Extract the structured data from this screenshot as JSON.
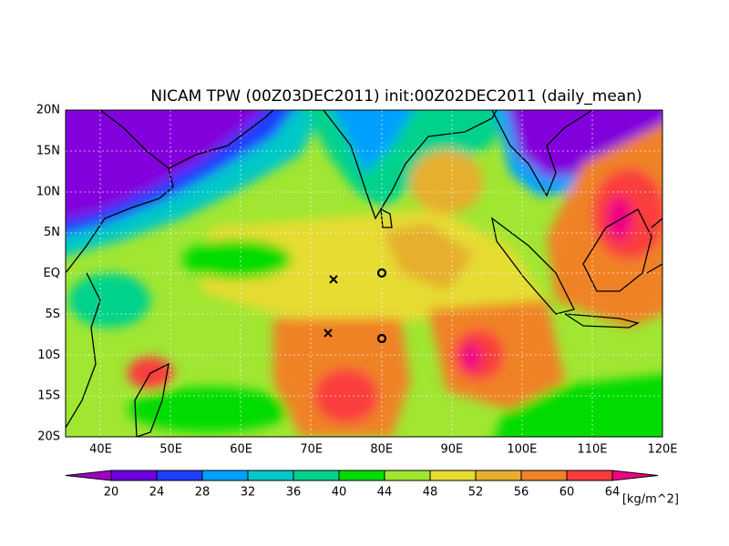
{
  "title": "NICAM TPW (00Z03DEC2011) init:00Z02DEC2011 (daily_mean)",
  "map": {
    "lat_labels": [
      "20N",
      "15N",
      "10N",
      "5N",
      "EQ",
      "5S",
      "10S",
      "15S",
      "20S"
    ],
    "lon_labels": [
      "40E",
      "50E",
      "60E",
      "70E",
      "80E",
      "90E",
      "100E",
      "110E",
      "120E"
    ]
  },
  "colorbar": {
    "colors": [
      "#a000c8",
      "#6e00dc",
      "#1e3cff",
      "#00a0ff",
      "#00c8c8",
      "#00d28c",
      "#00dc00",
      "#a0e632",
      "#e6dc32",
      "#e6af2d",
      "#f08228",
      "#fa3c3c",
      "#f00082"
    ],
    "labels": [
      20,
      24,
      28,
      32,
      36,
      40,
      44,
      48,
      52,
      56,
      60,
      64
    ],
    "unit": "[kg/m^2]"
  }
}
